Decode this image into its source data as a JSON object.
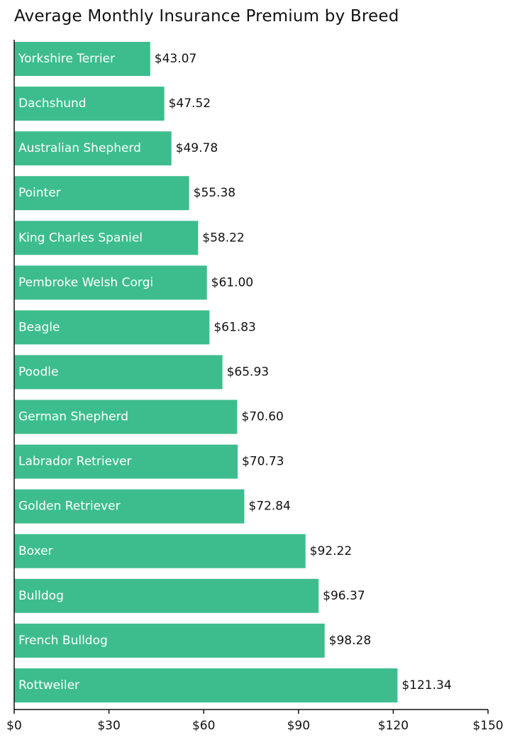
{
  "chart_data": {
    "type": "bar",
    "orientation": "horizontal",
    "title": "Average Monthly Insurance Premium by Breed",
    "categories": [
      "Yorkshire Terrier",
      "Dachshund",
      "Australian Shepherd",
      "Pointer",
      "King Charles Spaniel",
      "Pembroke Welsh Corgi",
      "Beagle",
      "Poodle",
      "German Shepherd",
      "Labrador Retriever",
      "Golden Retriever",
      "Boxer",
      "Bulldog",
      "French Bulldog",
      "Rottweiler"
    ],
    "values": [
      43.07,
      47.52,
      49.78,
      55.38,
      58.22,
      61.0,
      61.83,
      65.93,
      70.6,
      70.73,
      72.84,
      92.22,
      96.37,
      98.28,
      121.34
    ],
    "value_labels": [
      "$43.07",
      "$47.52",
      "$49.78",
      "$55.38",
      "$58.22",
      "$61.00",
      "$61.83",
      "$65.93",
      "$70.60",
      "$70.73",
      "$72.84",
      "$92.22",
      "$96.37",
      "$98.28",
      "$121.34"
    ],
    "xlim": [
      0,
      150
    ],
    "x_ticks": [
      0,
      30,
      60,
      90,
      120,
      150
    ],
    "x_tick_labels": [
      "$0",
      "$30",
      "$60",
      "$90",
      "$120",
      "$150"
    ],
    "xlabel": "",
    "ylabel": "",
    "grid": false,
    "legend": "none",
    "bar_color": "#3dbd8d",
    "axis_color": "#111111"
  }
}
